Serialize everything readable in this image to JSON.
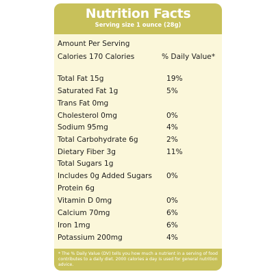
{
  "header": {
    "title": "Nutrition Facts",
    "serving": "Serving size 1 ounce (28g)"
  },
  "amount_per_serving": "Amount Per Serving",
  "calories": "Calories 170 Calories",
  "daily_value_header": "% Daily Value*",
  "nutrients": [
    {
      "name": "Total Fat 15g",
      "dv": "19%"
    },
    {
      "name": "Saturated Fat 1g",
      "dv": "5%"
    },
    {
      "name": "Trans Fat 0mg",
      "dv": ""
    },
    {
      "name": "Cholesterol 0mg",
      "dv": "0%"
    },
    {
      "name": "Sodium 95mg",
      "dv": "4%"
    },
    {
      "name": "Total Carbohydrate 6g",
      "dv": "2%"
    },
    {
      "name": "Dietary Fiber 3g",
      "dv": "11%"
    },
    {
      "name": "Total Sugars 1g",
      "dv": ""
    },
    {
      "name": "Includes 0g Added Sugars",
      "dv": "0%"
    },
    {
      "name": "Protein 6g",
      "dv": ""
    },
    {
      "name": "Vitamin D 0mg",
      "dv": "0%"
    },
    {
      "name": "Calcium 70mg",
      "dv": "6%"
    },
    {
      "name": "Iron 1mg",
      "dv": "6%"
    },
    {
      "name": "Potassium 200mg",
      "dv": "4%"
    }
  ],
  "footnote": "* The % Daily Value (DV) tells you how much a nutrient in a serving of food contributes to a daily diet. 2000 calories a day is used for general nutrition advice.",
  "colors": {
    "header_bg": "#c8c15a",
    "label_bg": "#fbf7da",
    "text": "#1c1c1c"
  }
}
